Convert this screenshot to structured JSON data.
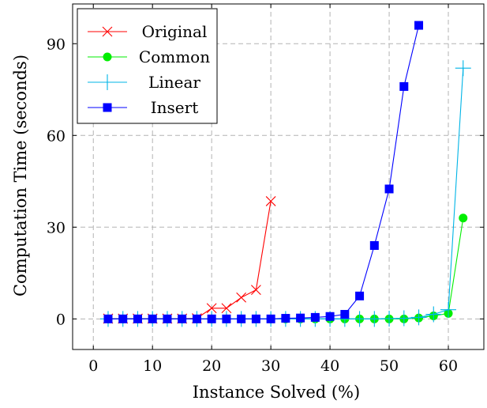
{
  "chart_data": {
    "type": "line",
    "xlabel": "Instance Solved (%)",
    "ylabel": "Computation Time (seconds)",
    "xlim": [
      -3.5,
      66
    ],
    "ylim": [
      -10,
      103
    ],
    "xticks": [
      0,
      10,
      20,
      30,
      40,
      50,
      60
    ],
    "yticks": [
      0,
      30,
      60,
      90
    ],
    "grid": true,
    "legend_position": "top-left",
    "series": [
      {
        "name": "Original",
        "color": "#ff0000",
        "marker": "x",
        "x": [
          2.5,
          5,
          7.5,
          10,
          12.5,
          15,
          17.5,
          20,
          22.5,
          25,
          27.5,
          30
        ],
        "y": [
          0.1,
          0.1,
          0.1,
          0.1,
          0.1,
          0.1,
          0.2,
          3.5,
          3.5,
          7,
          9.5,
          38.5
        ]
      },
      {
        "name": "Common",
        "color": "#00ee00",
        "marker": "circle",
        "x": [
          2.5,
          5,
          7.5,
          10,
          12.5,
          15,
          17.5,
          20,
          22.5,
          25,
          27.5,
          30,
          32.5,
          35,
          37.5,
          40,
          42.5,
          45,
          47.5,
          50,
          52.5,
          55,
          57.5,
          60,
          62.5
        ],
        "y": [
          0,
          0,
          0,
          0,
          0,
          0,
          0,
          0,
          0,
          0,
          0,
          0,
          0,
          0,
          0,
          0,
          0,
          0,
          0,
          0,
          0,
          0.3,
          1,
          1.8,
          33
        ]
      },
      {
        "name": "Linear",
        "color": "#00b4e6",
        "marker": "plus",
        "x": [
          2.5,
          5,
          7.5,
          10,
          12.5,
          15,
          17.5,
          20,
          22.5,
          25,
          27.5,
          30,
          32.5,
          35,
          37.5,
          40,
          42.5,
          45,
          47.5,
          50,
          52.5,
          55,
          57.5,
          60,
          62.5
        ],
        "y": [
          0,
          0,
          0,
          0,
          0,
          0,
          0,
          0,
          0,
          0,
          0,
          0,
          0,
          0,
          0,
          0,
          0,
          0,
          0,
          0.1,
          0.2,
          0.5,
          1.5,
          3,
          82
        ]
      },
      {
        "name": "Insert",
        "color": "#0000ff",
        "marker": "square",
        "x": [
          2.5,
          5,
          7.5,
          10,
          12.5,
          15,
          17.5,
          20,
          22.5,
          25,
          27.5,
          30,
          32.5,
          35,
          37.5,
          40,
          42.5,
          45,
          47.5,
          50,
          52.5,
          55
        ],
        "y": [
          0,
          0,
          0,
          0,
          0,
          0,
          0,
          0,
          0,
          0,
          0,
          0,
          0.2,
          0.3,
          0.5,
          0.8,
          1.5,
          7.5,
          24,
          42.5,
          76,
          96
        ]
      }
    ]
  }
}
